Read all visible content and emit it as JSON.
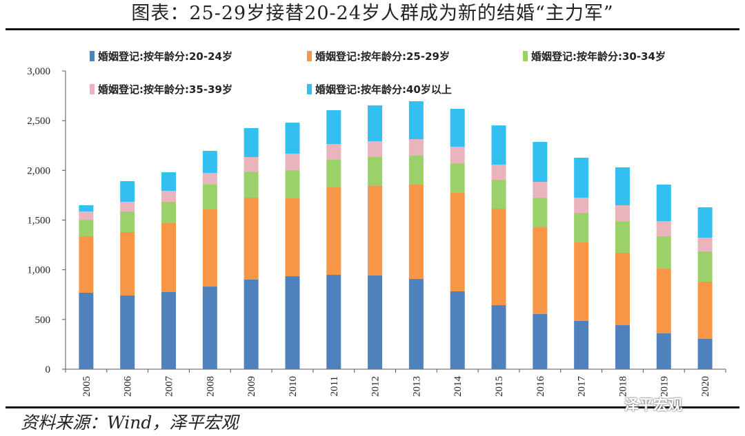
{
  "title": "图表：25-29岁接替20-24岁人群成为新的结婚“主力军”",
  "source": "资料来源：Wind，泽平宏观",
  "watermark": "泽平宏观",
  "chart_data": {
    "type": "bar",
    "stacked": true,
    "title": "图表：25-29岁接替20-24岁人群成为新的结婚“主力军”",
    "xlabel": "",
    "ylabel": "",
    "ylim": [
      0,
      3000
    ],
    "yticks": [
      0,
      500,
      1000,
      1500,
      2000,
      2500,
      3000
    ],
    "ytick_labels": [
      "0",
      "500",
      "1,000",
      "1,500",
      "2,000",
      "2,500",
      "3,000"
    ],
    "grid": false,
    "legend_position": "top",
    "categories": [
      "2005",
      "2006",
      "2007",
      "2008",
      "2009",
      "2010",
      "2011",
      "2012",
      "2013",
      "2014",
      "2015",
      "2016",
      "2017",
      "2018",
      "2019",
      "2020"
    ],
    "series": [
      {
        "name": "婚姻登记:按年龄分:20-24岁",
        "color": "#4f81bd",
        "values": [
          769,
          741,
          776,
          831,
          901,
          935,
          949,
          942,
          908,
          783,
          644,
          554,
          485,
          443,
          360,
          305
        ]
      },
      {
        "name": "婚姻登记:按年龄分:25-29岁",
        "color": "#f79646",
        "values": [
          568,
          638,
          693,
          776,
          824,
          783,
          880,
          901,
          949,
          991,
          970,
          873,
          790,
          728,
          651,
          575
        ]
      },
      {
        "name": "婚姻登记:按年龄分:30-34岁",
        "color": "#9bd16a",
        "values": [
          166,
          208,
          215,
          250,
          263,
          284,
          277,
          291,
          291,
          297,
          291,
          298,
          298,
          318,
          326,
          305
        ]
      },
      {
        "name": "婚姻登记:按年龄分:35-39岁",
        "color": "#e9b4bc",
        "values": [
          84,
          97,
          110,
          117,
          146,
          166,
          159,
          159,
          166,
          167,
          153,
          159,
          152,
          160,
          152,
          138
        ]
      },
      {
        "name": "婚姻登记:按年龄分:40岁以上",
        "color": "#33bff0",
        "values": [
          62,
          207,
          187,
          222,
          291,
          312,
          340,
          360,
          381,
          381,
          394,
          402,
          402,
          381,
          368,
          305
        ]
      }
    ]
  }
}
